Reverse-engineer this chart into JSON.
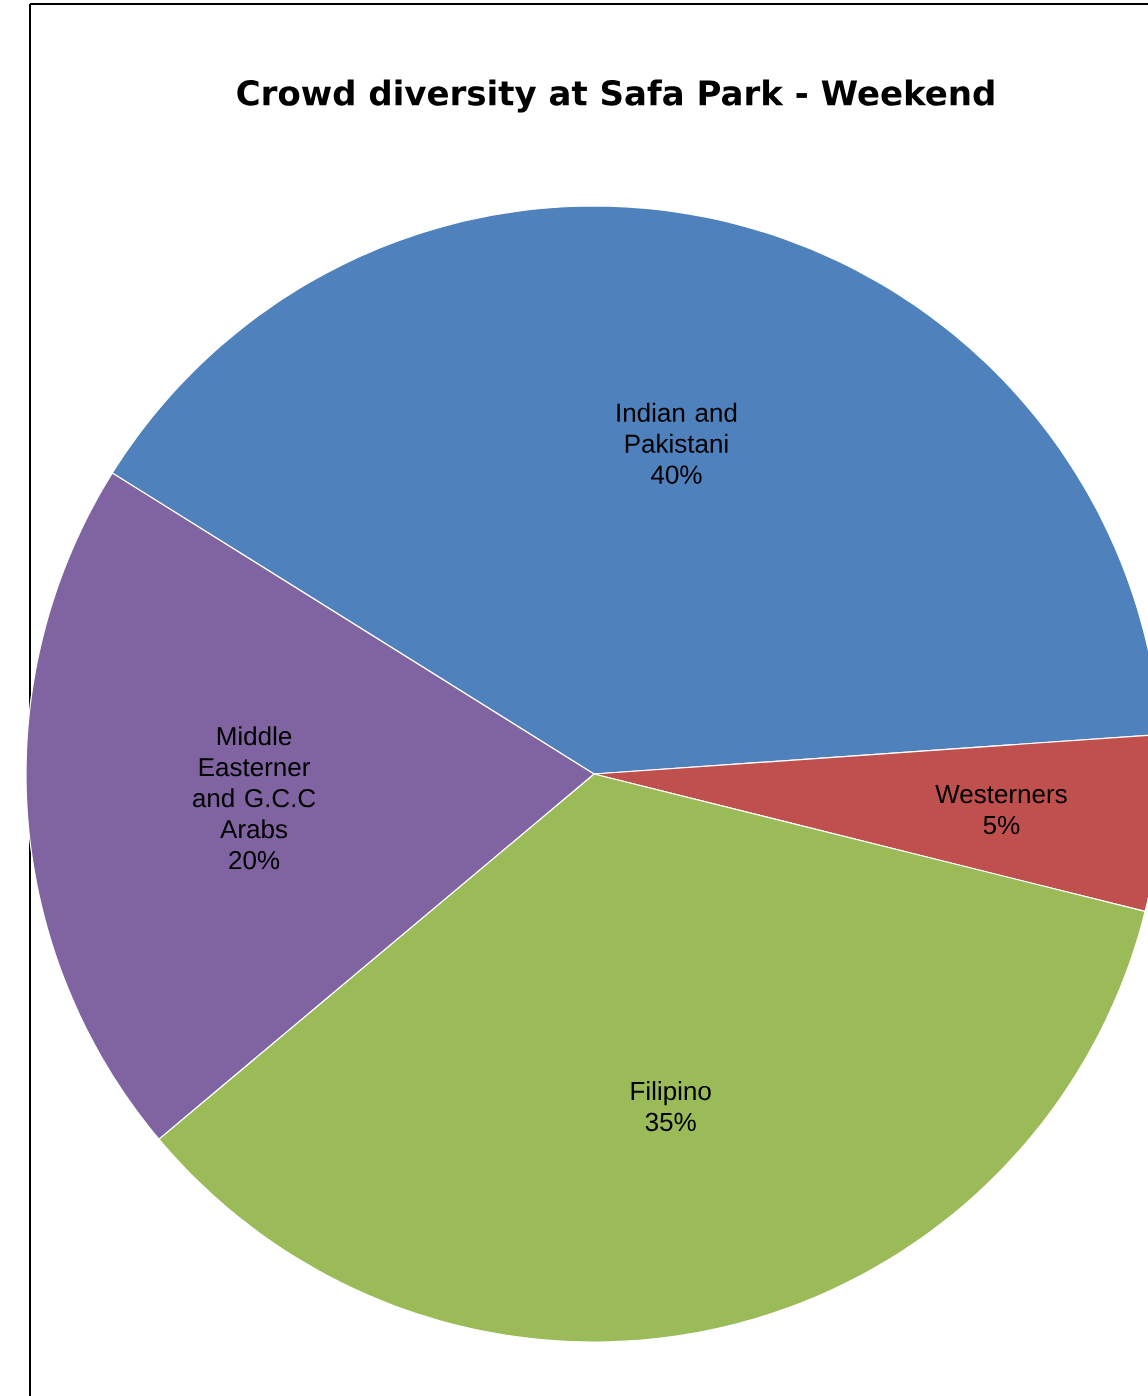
{
  "chart_data": {
    "type": "pie",
    "title": "Crowd diversity at Safa Park - Weekend",
    "categories": [
      "Indian and Pakistani",
      "Westerners",
      "Filipino",
      "Middle Easterner and G.C.C Arabs"
    ],
    "values": [
      40,
      5,
      35,
      20
    ],
    "value_labels": [
      "40%",
      "5%",
      "35%",
      "20%"
    ],
    "colors": [
      "#4f81bd",
      "#c0504d",
      "#9bbb59",
      "#8064a2"
    ]
  }
}
